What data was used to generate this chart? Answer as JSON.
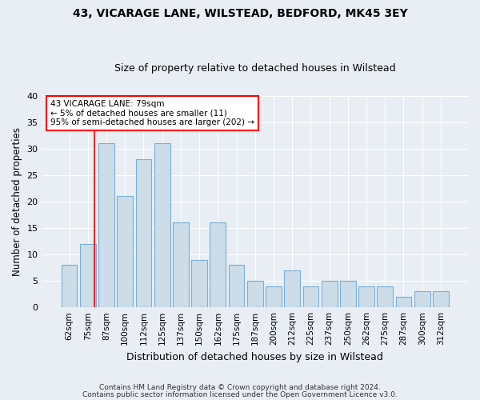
{
  "title_line1": "43, VICARAGE LANE, WILSTEAD, BEDFORD, MK45 3EY",
  "title_line2": "Size of property relative to detached houses in Wilstead",
  "xlabel": "Distribution of detached houses by size in Wilstead",
  "ylabel": "Number of detached properties",
  "categories": [
    "62sqm",
    "75sqm",
    "87sqm",
    "100sqm",
    "112sqm",
    "125sqm",
    "137sqm",
    "150sqm",
    "162sqm",
    "175sqm",
    "187sqm",
    "200sqm",
    "212sqm",
    "225sqm",
    "237sqm",
    "250sqm",
    "262sqm",
    "275sqm",
    "287sqm",
    "300sqm",
    "312sqm"
  ],
  "values": [
    8,
    12,
    31,
    21,
    28,
    31,
    16,
    9,
    16,
    8,
    5,
    4,
    7,
    4,
    5,
    5,
    4,
    4,
    2,
    3,
    3
  ],
  "bar_color": "#ccdce8",
  "bar_edge_color": "#7aafd4",
  "marker_label": "43 VICARAGE LANE: 79sqm",
  "marker_line1": "← 5% of detached houses are smaller (11)",
  "marker_line2": "95% of semi-detached houses are larger (202) →",
  "marker_color": "red",
  "ylim": [
    0,
    40
  ],
  "yticks": [
    0,
    5,
    10,
    15,
    20,
    25,
    30,
    35,
    40
  ],
  "fig_bg_color": "#e8eef4",
  "plot_bg_color": "#e8eef4",
  "footer_line1": "Contains HM Land Registry data © Crown copyright and database right 2024.",
  "footer_line2": "Contains public sector information licensed under the Open Government Licence v3.0."
}
